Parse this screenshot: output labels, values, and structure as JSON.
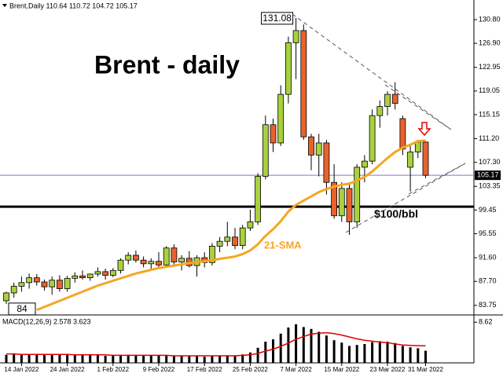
{
  "chart_data": [
    {
      "type": "candlestick",
      "header": "Brent,Daily 110.64 110.72 104.72 105.17",
      "title": "Brent - daily",
      "categories": [
        null,
        null,
        "14 Jan 2022",
        null,
        null,
        null,
        null,
        null,
        "24 Jan 2022",
        null,
        null,
        null,
        null,
        null,
        "1 Feb 2022",
        null,
        null,
        null,
        null,
        null,
        "9 Feb 2022",
        null,
        null,
        null,
        null,
        null,
        "17 Feb 2022",
        null,
        null,
        null,
        null,
        null,
        "25 Feb 2022",
        null,
        null,
        null,
        null,
        null,
        "7 Mar 2022",
        null,
        null,
        null,
        null,
        null,
        "15 Mar 2022",
        null,
        null,
        null,
        null,
        null,
        "23 Mar 2022",
        null,
        null,
        null,
        null,
        "31 Mar 2022"
      ],
      "open": [
        84.5,
        85.8,
        86.9,
        87.5,
        88.3,
        87.6,
        86.8,
        87.9,
        86.5,
        88.2,
        88.6,
        88.3,
        88.9,
        89.3,
        88.7,
        89.5,
        91.2,
        92.0,
        91.2,
        90.6,
        91.0,
        90.4,
        93.2,
        90.9,
        91.5,
        90.3,
        91.6,
        90.8,
        93.5,
        94.3,
        95.0,
        93.6,
        96.5,
        97.5,
        105.0,
        113.5,
        110.5,
        118.5,
        127.0,
        129.0,
        111.5,
        108.5,
        110.5,
        104.0,
        98.5,
        103.0,
        97.5,
        106.5,
        107.5,
        115.0,
        116.5,
        118.5,
        114.5,
        106.5,
        109.0,
        110.64
      ],
      "high": [
        86.0,
        87.5,
        88.5,
        89.0,
        88.9,
        88.0,
        88.5,
        88.7,
        88.6,
        89.2,
        89.5,
        89.0,
        90.0,
        89.8,
        89.9,
        91.5,
        92.5,
        92.8,
        91.8,
        91.5,
        92.5,
        93.5,
        93.8,
        92.0,
        92.7,
        92.0,
        92.5,
        94.0,
        95.0,
        97.5,
        96.5,
        97.0,
        99.5,
        105.5,
        115.0,
        114.5,
        120.0,
        128.0,
        131.08,
        130.0,
        112.0,
        112.0,
        111.0,
        107.0,
        104.0,
        104.0,
        107.0,
        108.5,
        116.0,
        117.5,
        119.0,
        120.5,
        115.0,
        110.0,
        111.0,
        110.72
      ],
      "low": [
        84.0,
        85.0,
        86.0,
        86.5,
        87.0,
        86.2,
        85.5,
        86.0,
        86.0,
        87.5,
        88.0,
        87.8,
        88.5,
        88.0,
        88.4,
        89.0,
        90.5,
        90.8,
        90.0,
        89.5,
        90.0,
        90.0,
        90.5,
        89.5,
        90.0,
        88.5,
        90.0,
        90.3,
        92.5,
        93.5,
        93.0,
        93.0,
        96.0,
        97.0,
        104.5,
        109.0,
        110.0,
        117.0,
        121.0,
        111.0,
        106.0,
        105.0,
        102.0,
        98.0,
        97.5,
        95.37,
        96.5,
        104.0,
        107.0,
        113.0,
        115.0,
        116.0,
        108.5,
        102.5,
        108.0,
        104.72
      ],
      "close": [
        85.8,
        86.9,
        87.5,
        88.3,
        87.6,
        86.8,
        87.9,
        86.5,
        88.2,
        88.6,
        88.3,
        88.9,
        89.3,
        88.7,
        89.5,
        91.2,
        92.0,
        91.2,
        90.6,
        91.0,
        90.4,
        93.2,
        90.9,
        91.5,
        90.3,
        91.6,
        90.8,
        93.5,
        94.3,
        95.0,
        93.6,
        96.5,
        97.5,
        105.0,
        113.5,
        110.5,
        118.5,
        127.0,
        129.0,
        111.5,
        108.5,
        110.5,
        104.0,
        98.5,
        103.0,
        97.5,
        106.5,
        107.5,
        115.0,
        116.5,
        118.5,
        117.0,
        109.5,
        109.0,
        110.64,
        105.17
      ],
      "up_color": "#a9d13e",
      "down_color": "#e8622c",
      "series": [
        {
          "name": "21-SMA",
          "color": "#f5a623",
          "values": [
            null,
            null,
            null,
            null,
            83.0,
            83.5,
            84.0,
            84.5,
            85.0,
            85.5,
            86.0,
            86.5,
            87.0,
            87.4,
            87.8,
            88.2,
            88.6,
            89.0,
            89.3,
            89.6,
            89.9,
            90.1,
            90.3,
            90.5,
            90.7,
            90.9,
            91.0,
            91.2,
            91.4,
            91.6,
            91.8,
            92.2,
            92.8,
            93.8,
            95.2,
            96.3,
            97.6,
            99.2,
            100.3,
            101.0,
            101.7,
            102.4,
            102.9,
            103.3,
            103.6,
            103.8,
            104.3,
            104.9,
            105.8,
            106.9,
            108.0,
            109.0,
            109.7,
            110.2,
            110.8,
            110.9
          ]
        }
      ],
      "level": {
        "value": 100,
        "label": "$100/bbl"
      },
      "ylim": [
        82.3,
        133.0
      ],
      "yticks": [
        {
          "value": 130.8,
          "label": "130.80"
        },
        {
          "value": 126.9,
          "label": "126.90"
        },
        122.95,
        119.05,
        115.15,
        {
          "value": 111.2,
          "label": "111.20"
        },
        {
          "value": 107.3,
          "label": "107.30"
        },
        103.35,
        99.45,
        95.55,
        {
          "value": 91.6,
          "label": "91.60"
        },
        {
          "value": 87.7,
          "label": "87.70"
        },
        83.75
      ]
    },
    {
      "type": "macd",
      "header": "MACD(12,26,9) 2.578 3.623",
      "values": [
        1.7,
        1.8,
        1.8,
        1.9,
        1.9,
        1.8,
        1.8,
        1.7,
        1.7,
        1.7,
        1.6,
        1.6,
        1.6,
        1.5,
        1.5,
        1.6,
        1.7,
        1.7,
        1.6,
        1.6,
        1.5,
        1.6,
        1.5,
        1.5,
        1.4,
        1.4,
        1.3,
        1.4,
        1.5,
        1.6,
        1.6,
        1.8,
        2.2,
        3.2,
        4.5,
        5.0,
        6.2,
        7.5,
        8.2,
        7.6,
        7.2,
        6.6,
        5.8,
        4.8,
        4.3,
        3.6,
        3.8,
        4.0,
        4.4,
        4.6,
        4.5,
        4.2,
        3.6,
        3.3,
        3.1,
        2.578
      ],
      "color": "#000000",
      "signal": {
        "color": "#e00000",
        "values": [
          1.9,
          1.9,
          1.8,
          1.8,
          1.8,
          1.8,
          1.8,
          1.8,
          1.8,
          1.7,
          1.7,
          1.7,
          1.7,
          1.7,
          1.6,
          1.6,
          1.6,
          1.6,
          1.6,
          1.6,
          1.6,
          1.6,
          1.5,
          1.5,
          1.5,
          1.5,
          1.5,
          1.5,
          1.5,
          1.5,
          1.5,
          1.6,
          1.7,
          2.0,
          2.5,
          2.9,
          3.5,
          4.2,
          5.0,
          5.6,
          6.1,
          6.3,
          6.4,
          6.2,
          5.9,
          5.5,
          5.1,
          4.8,
          4.6,
          4.4,
          4.3,
          4.0,
          3.8,
          3.7,
          3.65,
          3.623
        ]
      },
      "ylim": [
        0,
        10
      ],
      "yticks": [
        8.62
      ]
    }
  ]
}
